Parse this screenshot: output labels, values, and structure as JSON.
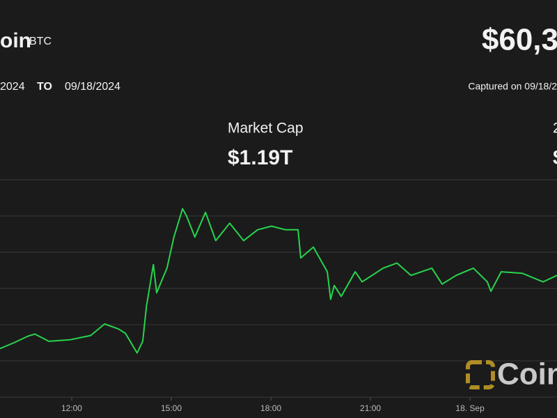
{
  "header": {
    "name": "oin",
    "symbol": "BTC",
    "price": "$60,3"
  },
  "range": {
    "from": "2024",
    "to_word": "TO",
    "to": "09/18/2024"
  },
  "captured": "Captured on 09/18/2",
  "stats": [
    {
      "label": "Market Cap",
      "value": "$1.19T"
    },
    {
      "label": "2",
      "value": "$"
    }
  ],
  "logo": "Coin",
  "chart_data": {
    "type": "line",
    "color": "#27d44e",
    "grid": true,
    "x": [
      9.84,
      10.26,
      10.68,
      10.89,
      11.31,
      11.94,
      12.57,
      12.99,
      13.41,
      13.62,
      13.97,
      14.14,
      14.25,
      14.46,
      14.56,
      14.87,
      15.08,
      15.34,
      15.46,
      15.71,
      16.03,
      16.34,
      16.76,
      17.18,
      17.6,
      18.02,
      18.44,
      18.82,
      18.9,
      19.28,
      19.7,
      19.8,
      19.91,
      20.12,
      20.54,
      20.75,
      21.38,
      21.8,
      22.22,
      22.85,
      23.16,
      23.58,
      24.1,
      24.52,
      24.63,
      24.94,
      25.57,
      26.2,
      26.62
    ],
    "values": [
      58170,
      58250,
      58340,
      58370,
      58270,
      58290,
      58350,
      58510,
      58440,
      58380,
      58110,
      58270,
      58750,
      59330,
      58940,
      59280,
      59710,
      60100,
      60000,
      59710,
      60050,
      59660,
      59900,
      59660,
      59810,
      59860,
      59810,
      59810,
      59420,
      59570,
      59230,
      58850,
      59040,
      58890,
      59230,
      59090,
      59280,
      59350,
      59180,
      59280,
      59060,
      59180,
      59280,
      59090,
      58960,
      59230,
      59210,
      59090,
      59180
    ],
    "xlim": [
      9.84,
      26.62
    ],
    "xticks": [
      {
        "value": 12,
        "label": "12:00"
      },
      {
        "value": 15,
        "label": "15:00"
      },
      {
        "value": 18,
        "label": "18:00"
      },
      {
        "value": 21,
        "label": "21:00"
      },
      {
        "value": 24,
        "label": "18. Sep"
      }
    ],
    "ylim": [
      57500,
      60500
    ],
    "yticks": [
      58000,
      58500,
      59000,
      59500,
      60000
    ]
  }
}
